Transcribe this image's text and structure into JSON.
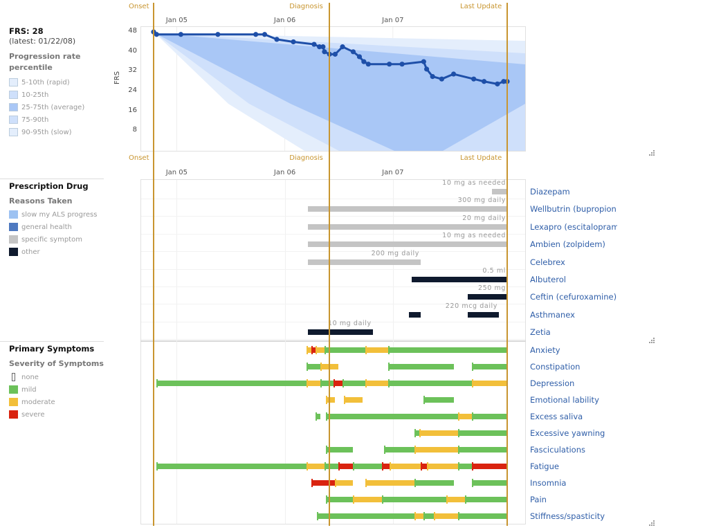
{
  "frs": {
    "score_label": "FRS: 28",
    "latest": "(latest: 01/22/08)",
    "legend_title": "Progression rate percentile",
    "legend": [
      {
        "label": "5-10th (rapid)",
        "color": "#e4eefc"
      },
      {
        "label": "10-25th",
        "color": "#cfe0fb"
      },
      {
        "label": "25-75th (average)",
        "color": "#a9c7f6"
      },
      {
        "label": "75-90th",
        "color": "#cfe0fb"
      },
      {
        "label": "90-95th (slow)",
        "color": "#e4eefc"
      }
    ]
  },
  "markers": [
    {
      "name": "onset",
      "label": "Onset",
      "date": "2004-10-15"
    },
    {
      "name": "diagnosis",
      "label": "Diagnosis",
      "date": "2006-06-01"
    },
    {
      "name": "last-update",
      "label": "Last Update",
      "date": "2008-01-22"
    }
  ],
  "time_axis": {
    "range": [
      "2004-10-15",
      "2008-01-22"
    ],
    "ticks": [
      {
        "label": "Jan 05",
        "date": "2005-01-01"
      },
      {
        "label": "Jan 06",
        "date": "2006-01-01"
      },
      {
        "label": "Jan 07",
        "date": "2007-01-01"
      }
    ]
  },
  "chart_data": [
    {
      "type": "line",
      "ylabel": "FRS",
      "yticks": [
        8,
        16,
        24,
        32,
        40,
        48
      ],
      "ylim": [
        0,
        50
      ],
      "series": [
        {
          "x": [
            "2004-10-15",
            "2004-10-25",
            "2005-01-15",
            "2005-05-20",
            "2005-09-25",
            "2005-10-25",
            "2005-12-05",
            "2006-01-30",
            "2006-04-10",
            "2006-04-28",
            "2006-05-10",
            "2006-05-15",
            "2006-06-01",
            "2006-06-20",
            "2006-07-15",
            "2006-08-20",
            "2006-09-10",
            "2006-09-25",
            "2006-10-10",
            "2006-12-20",
            "2007-02-01",
            "2007-04-15",
            "2007-04-25",
            "2007-05-15",
            "2007-06-15",
            "2007-07-25",
            "2007-10-01",
            "2007-11-05",
            "2007-12-20",
            "2008-01-10",
            "2008-01-22"
          ],
          "y": [
            48,
            47,
            47,
            47,
            47,
            47,
            45,
            44,
            43,
            42,
            42,
            40,
            39,
            39,
            42,
            40,
            38,
            36,
            35,
            35,
            35,
            36,
            33,
            30,
            29,
            31,
            29,
            28,
            27,
            28,
            28
          ]
        }
      ],
      "bands": "Progression rate percentile"
    },
    {
      "type": "bar",
      "title": "Prescription Drug",
      "legend_title": "Reasons Taken",
      "legend": [
        {
          "label": "slow my ALS progress",
          "color": "#9dc2f2"
        },
        {
          "label": "general health",
          "color": "#4e79c0"
        },
        {
          "label": "specific symptom",
          "color": "#c4c4c4"
        },
        {
          "label": "other",
          "color": "#0f1a2e"
        }
      ],
      "drugs": [
        {
          "name": "Diazepam",
          "dose": "10 mg as needed",
          "reason": "specific symptom",
          "periods": [
            [
              "2007-12-01",
              "2008-01-22"
            ]
          ]
        },
        {
          "name": "Wellbutrin (bupropion)",
          "dose": "300 mg daily",
          "reason": "specific symptom",
          "periods": [
            [
              "2006-03-20",
              "2008-01-22"
            ]
          ]
        },
        {
          "name": "Lexapro (escitalopram)",
          "dose": "20 mg daily",
          "reason": "specific symptom",
          "periods": [
            [
              "2006-03-20",
              "2008-01-22"
            ]
          ]
        },
        {
          "name": "Ambien (zolpidem)",
          "dose": "10 mg as needed",
          "reason": "specific symptom",
          "periods": [
            [
              "2006-03-20",
              "2008-01-22"
            ]
          ]
        },
        {
          "name": "Celebrex",
          "dose": "200 mg daily",
          "reason": "specific symptom",
          "periods": [
            [
              "2006-03-20",
              "2007-04-05"
            ]
          ]
        },
        {
          "name": "Albuterol",
          "dose": "0.5 ml",
          "reason": "other",
          "periods": [
            [
              "2007-03-05",
              "2008-01-22"
            ]
          ]
        },
        {
          "name": "Ceftin (cefuroxamine)",
          "dose": "250 mg",
          "reason": "other",
          "periods": [
            [
              "2007-09-10",
              "2008-01-22"
            ]
          ]
        },
        {
          "name": "Asthmanex",
          "dose": "220 mcg daily",
          "reason": "other",
          "periods": [
            [
              "2007-02-25",
              "2007-04-05"
            ],
            [
              "2007-09-10",
              "2007-12-25"
            ]
          ]
        },
        {
          "name": "Zetia",
          "dose": "10 mg daily",
          "reason": "other",
          "periods": [
            [
              "2006-03-20",
              "2006-10-25"
            ]
          ]
        }
      ]
    },
    {
      "type": "bar",
      "title": "Primary Symptoms",
      "legend_title": "Severity of Symptoms",
      "legend": [
        {
          "label": "none",
          "color": "#ffffff"
        },
        {
          "label": "mild",
          "color": "#6cc15a"
        },
        {
          "label": "moderate",
          "color": "#f2bf3a"
        },
        {
          "label": "severe",
          "color": "#d9230f"
        }
      ],
      "symptoms": [
        {
          "name": "Anxiety",
          "segments": [
            [
              "2006-03-15",
              "2006-04-01",
              "moderate"
            ],
            [
              "2006-04-01",
              "2006-04-15",
              "severe"
            ],
            [
              "2006-04-15",
              "2006-05-15",
              "moderate"
            ],
            [
              "2006-05-15",
              "2006-10-01",
              "mild"
            ],
            [
              "2006-10-01",
              "2006-12-15",
              "moderate"
            ],
            [
              "2006-12-15",
              "2008-01-22",
              "mild"
            ]
          ]
        },
        {
          "name": "Constipation",
          "segments": [
            [
              "2006-03-15",
              "2006-05-01",
              "mild"
            ],
            [
              "2006-05-01",
              "2006-07-01",
              "moderate"
            ],
            [
              "2006-12-15",
              "2007-07-25",
              "mild"
            ],
            [
              "2007-09-25",
              "2008-01-22",
              "mild"
            ]
          ]
        },
        {
          "name": "Depression",
          "segments": [
            [
              "2004-10-25",
              "2006-03-15",
              "mild"
            ],
            [
              "2006-03-15",
              "2006-05-01",
              "moderate"
            ],
            [
              "2006-05-01",
              "2006-06-15",
              "mild"
            ],
            [
              "2006-06-15",
              "2006-07-15",
              "severe"
            ],
            [
              "2006-07-15",
              "2006-10-01",
              "mild"
            ],
            [
              "2006-10-01",
              "2006-12-15",
              "moderate"
            ],
            [
              "2006-12-15",
              "2007-09-25",
              "mild"
            ],
            [
              "2007-09-25",
              "2008-01-22",
              "moderate"
            ]
          ]
        },
        {
          "name": "Emotional lability",
          "segments": [
            [
              "2006-05-20",
              "2006-06-20",
              "moderate"
            ],
            [
              "2006-07-20",
              "2006-09-20",
              "moderate"
            ],
            [
              "2007-04-15",
              "2007-07-25",
              "mild"
            ]
          ]
        },
        {
          "name": "Excess saliva",
          "segments": [
            [
              "2006-04-15",
              "2006-05-01",
              "mild"
            ],
            [
              "2006-05-20",
              "2007-08-10",
              "mild"
            ],
            [
              "2007-08-10",
              "2007-09-25",
              "moderate"
            ],
            [
              "2007-09-25",
              "2008-01-22",
              "mild"
            ]
          ]
        },
        {
          "name": "Excessive yawning",
          "segments": [
            [
              "2007-03-15",
              "2007-04-01",
              "mild"
            ],
            [
              "2007-04-01",
              "2007-08-10",
              "moderate"
            ],
            [
              "2007-08-10",
              "2008-01-22",
              "mild"
            ]
          ]
        },
        {
          "name": "Fasciculations",
          "segments": [
            [
              "2006-05-20",
              "2006-08-20",
              "mild"
            ],
            [
              "2006-12-01",
              "2007-03-15",
              "mild"
            ],
            [
              "2007-03-15",
              "2007-08-10",
              "moderate"
            ],
            [
              "2007-08-10",
              "2008-01-22",
              "mild"
            ]
          ]
        },
        {
          "name": "Fatigue",
          "segments": [
            [
              "2004-10-25",
              "2006-03-15",
              "mild"
            ],
            [
              "2006-03-15",
              "2006-05-15",
              "moderate"
            ],
            [
              "2006-05-15",
              "2006-07-01",
              "mild"
            ],
            [
              "2006-07-01",
              "2006-08-20",
              "severe"
            ],
            [
              "2006-08-20",
              "2006-11-25",
              "mild"
            ],
            [
              "2006-11-25",
              "2006-12-20",
              "severe"
            ],
            [
              "2006-12-20",
              "2007-04-05",
              "moderate"
            ],
            [
              "2007-04-05",
              "2007-04-25",
              "severe"
            ],
            [
              "2007-04-25",
              "2007-08-10",
              "moderate"
            ],
            [
              "2007-08-10",
              "2007-09-25",
              "mild"
            ],
            [
              "2007-09-25",
              "2008-01-22",
              "severe"
            ]
          ]
        },
        {
          "name": "Insomnia",
          "segments": [
            [
              "2006-04-01",
              "2006-06-20",
              "severe"
            ],
            [
              "2006-06-20",
              "2006-08-20",
              "moderate"
            ],
            [
              "2006-10-01",
              "2007-03-15",
              "moderate"
            ],
            [
              "2007-03-15",
              "2007-07-25",
              "mild"
            ],
            [
              "2007-09-25",
              "2008-01-22",
              "mild"
            ]
          ]
        },
        {
          "name": "Pain",
          "segments": [
            [
              "2006-05-20",
              "2006-08-20",
              "mild"
            ],
            [
              "2006-08-20",
              "2006-11-25",
              "moderate"
            ],
            [
              "2006-11-25",
              "2007-07-01",
              "mild"
            ],
            [
              "2007-07-01",
              "2007-09-01",
              "moderate"
            ],
            [
              "2007-09-01",
              "2008-01-22",
              "mild"
            ]
          ]
        },
        {
          "name": "Stiffness/spasticity",
          "segments": [
            [
              "2006-04-20",
              "2007-03-15",
              "mild"
            ],
            [
              "2007-03-15",
              "2007-04-15",
              "moderate"
            ],
            [
              "2007-04-15",
              "2007-05-20",
              "mild"
            ],
            [
              "2007-05-20",
              "2007-08-10",
              "moderate"
            ],
            [
              "2007-08-10",
              "2008-01-22",
              "mild"
            ]
          ]
        }
      ]
    }
  ]
}
